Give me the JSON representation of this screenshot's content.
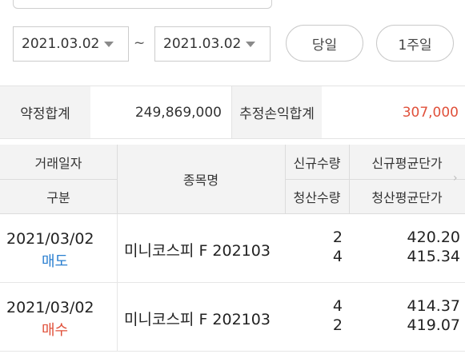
{
  "filter": {
    "start_date": "2021.03.02",
    "separator": "~",
    "end_date": "2021.03.02",
    "today_label": "당일",
    "week_label": "1주일"
  },
  "summary": {
    "contract_total_label": "약정합계",
    "contract_total_value": "249,869,000",
    "estimated_pl_label": "추정손익합계",
    "estimated_pl_value": "307,000",
    "estimated_pl_color": "#e0503a"
  },
  "table": {
    "headers": {
      "trade_date": "거래일자",
      "type": "구분",
      "item_name": "종목명",
      "new_qty": "신규수량",
      "new_avg_price": "신규평균단가",
      "settle_qty": "청산수량",
      "settle_avg_price": "청산평균단가"
    },
    "rows": [
      {
        "date": "2021/03/02",
        "side": "매도",
        "side_color": "#2a7fd0",
        "name": "미니코스피 F 202103",
        "new_qty": "2",
        "settle_qty": "4",
        "new_avg": "420.20",
        "settle_avg": "415.34"
      },
      {
        "date": "2021/03/02",
        "side": "매수",
        "side_color": "#e0503a",
        "name": "미니코스피 F 202103",
        "new_qty": "4",
        "settle_qty": "2",
        "new_avg": "414.37",
        "settle_avg": "419.07"
      }
    ]
  }
}
